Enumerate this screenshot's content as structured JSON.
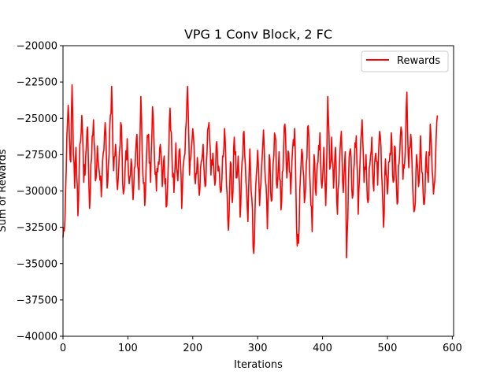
{
  "chart_data": {
    "type": "line",
    "title": "VPG 1 Conv Block, 2 FC",
    "xlabel": "Iterations",
    "ylabel": "Sum of Rewards",
    "xlim": [
      0,
      602
    ],
    "ylim": [
      -40000,
      -20000
    ],
    "x_ticks": [
      0,
      100,
      200,
      300,
      400,
      500,
      600
    ],
    "y_ticks": [
      -40000,
      -37500,
      -35000,
      -32500,
      -30000,
      -27500,
      -25000,
      -22500,
      -20000
    ],
    "grid": false,
    "legend_position": "top-right",
    "series": [
      {
        "name": "Rewards",
        "color": "#ff0000",
        "anchors": [
          [
            0,
            -33200
          ],
          [
            3,
            -32000
          ],
          [
            5,
            -28500
          ],
          [
            8,
            -24100
          ],
          [
            10,
            -26500
          ],
          [
            12,
            -28000
          ],
          [
            14,
            -22700
          ],
          [
            16,
            -27500
          ],
          [
            18,
            -29800
          ],
          [
            20,
            -27000
          ],
          [
            23,
            -31700
          ],
          [
            26,
            -26800
          ],
          [
            29,
            -24800
          ],
          [
            32,
            -29400
          ],
          [
            35,
            -27600
          ],
          [
            38,
            -25600
          ],
          [
            41,
            -31200
          ],
          [
            44,
            -27800
          ],
          [
            47,
            -25100
          ],
          [
            50,
            -29300
          ],
          [
            53,
            -26900
          ],
          [
            56,
            -28700
          ],
          [
            59,
            -30400
          ],
          [
            62,
            -27400
          ],
          [
            65,
            -25300
          ],
          [
            68,
            -29800
          ],
          [
            71,
            -27500
          ],
          [
            75,
            -22800
          ],
          [
            78,
            -28600
          ],
          [
            81,
            -26800
          ],
          [
            84,
            -29900
          ],
          [
            87,
            -27300
          ],
          [
            90,
            -25500
          ],
          [
            93,
            -30200
          ],
          [
            96,
            -28100
          ],
          [
            99,
            -26400
          ],
          [
            102,
            -29500
          ],
          [
            105,
            -27800
          ],
          [
            108,
            -30600
          ],
          [
            111,
            -28300
          ],
          [
            114,
            -26100
          ],
          [
            117,
            -29900
          ],
          [
            120,
            -23500
          ],
          [
            123,
            -28700
          ],
          [
            126,
            -31000
          ],
          [
            129,
            -27300
          ],
          [
            132,
            -26100
          ],
          [
            135,
            -29400
          ],
          [
            138,
            -24200
          ],
          [
            141,
            -27700
          ],
          [
            144,
            -30000
          ],
          [
            147,
            -28000
          ],
          [
            150,
            -26800
          ],
          [
            153,
            -29700
          ],
          [
            156,
            -27600
          ],
          [
            159,
            -31100
          ],
          [
            162,
            -28600
          ],
          [
            165,
            -24300
          ],
          [
            168,
            -27800
          ],
          [
            171,
            -30100
          ],
          [
            174,
            -26700
          ],
          [
            177,
            -29300
          ],
          [
            180,
            -27100
          ],
          [
            183,
            -31200
          ],
          [
            186,
            -28000
          ],
          [
            189,
            -25800
          ],
          [
            192,
            -22800
          ],
          [
            195,
            -28900
          ],
          [
            198,
            -27000
          ],
          [
            201,
            -26200
          ],
          [
            204,
            -29500
          ],
          [
            207,
            -27700
          ],
          [
            210,
            -30300
          ],
          [
            213,
            -28000
          ],
          [
            216,
            -26800
          ],
          [
            219,
            -29700
          ],
          [
            222,
            -27300
          ],
          [
            225,
            -25300
          ],
          [
            228,
            -28900
          ],
          [
            231,
            -27400
          ],
          [
            234,
            -29600
          ],
          [
            237,
            -26600
          ],
          [
            240,
            -28300
          ],
          [
            243,
            -30100
          ],
          [
            246,
            -27600
          ],
          [
            249,
            -25700
          ],
          [
            252,
            -29600
          ],
          [
            255,
            -32700
          ],
          [
            258,
            -28000
          ],
          [
            261,
            -30800
          ],
          [
            264,
            -26300
          ],
          [
            267,
            -29100
          ],
          [
            270,
            -27600
          ],
          [
            273,
            -31800
          ],
          [
            276,
            -28000
          ],
          [
            279,
            -25900
          ],
          [
            282,
            -29400
          ],
          [
            285,
            -32100
          ],
          [
            288,
            -27100
          ],
          [
            291,
            -30500
          ],
          [
            294,
            -34300
          ],
          [
            297,
            -29700
          ],
          [
            300,
            -27200
          ],
          [
            303,
            -31000
          ],
          [
            306,
            -28400
          ],
          [
            309,
            -25800
          ],
          [
            312,
            -29300
          ],
          [
            315,
            -32600
          ],
          [
            318,
            -27500
          ],
          [
            321,
            -30700
          ],
          [
            324,
            -28000
          ],
          [
            327,
            -26200
          ],
          [
            330,
            -29800
          ],
          [
            333,
            -27300
          ],
          [
            336,
            -31300
          ],
          [
            339,
            -28600
          ],
          [
            342,
            -25400
          ],
          [
            345,
            -29100
          ],
          [
            348,
            -27400
          ],
          [
            351,
            -30200
          ],
          [
            354,
            -27000
          ],
          [
            357,
            -25700
          ],
          [
            360,
            -32600
          ],
          [
            363,
            -33600
          ],
          [
            366,
            -29000
          ],
          [
            369,
            -27400
          ],
          [
            372,
            -30800
          ],
          [
            375,
            -28100
          ],
          [
            378,
            -25500
          ],
          [
            381,
            -29600
          ],
          [
            384,
            -32800
          ],
          [
            387,
            -27500
          ],
          [
            390,
            -30300
          ],
          [
            393,
            -28000
          ],
          [
            396,
            -26000
          ],
          [
            399,
            -29800
          ],
          [
            402,
            -27000
          ],
          [
            405,
            -31000
          ],
          [
            408,
            -23500
          ],
          [
            411,
            -28500
          ],
          [
            414,
            -26300
          ],
          [
            417,
            -29800
          ],
          [
            420,
            -27000
          ],
          [
            423,
            -31600
          ],
          [
            426,
            -28200
          ],
          [
            429,
            -25900
          ],
          [
            432,
            -30100
          ],
          [
            435,
            -27300
          ],
          [
            437,
            -34600
          ],
          [
            440,
            -29300
          ],
          [
            443,
            -27100
          ],
          [
            446,
            -30500
          ],
          [
            449,
            -28100
          ],
          [
            452,
            -26200
          ],
          [
            455,
            -31600
          ],
          [
            458,
            -27700
          ],
          [
            461,
            -25100
          ],
          [
            464,
            -29400
          ],
          [
            467,
            -27500
          ],
          [
            470,
            -30800
          ],
          [
            473,
            -28200
          ],
          [
            476,
            -26300
          ],
          [
            479,
            -30000
          ],
          [
            482,
            -27400
          ],
          [
            485,
            -29600
          ],
          [
            488,
            -25900
          ],
          [
            491,
            -28700
          ],
          [
            494,
            -32500
          ],
          [
            497,
            -27800
          ],
          [
            500,
            -30200
          ],
          [
            503,
            -28000
          ],
          [
            506,
            -26000
          ],
          [
            509,
            -29400
          ],
          [
            512,
            -27000
          ],
          [
            515,
            -30900
          ],
          [
            518,
            -28100
          ],
          [
            521,
            -25600
          ],
          [
            524,
            -29200
          ],
          [
            527,
            -27700
          ],
          [
            530,
            -23200
          ],
          [
            533,
            -28400
          ],
          [
            536,
            -26100
          ],
          [
            539,
            -29800
          ],
          [
            542,
            -31300
          ],
          [
            545,
            -27500
          ],
          [
            548,
            -29700
          ],
          [
            551,
            -26200
          ],
          [
            554,
            -28800
          ],
          [
            557,
            -30900
          ],
          [
            560,
            -27300
          ],
          [
            563,
            -29400
          ],
          [
            566,
            -25400
          ],
          [
            569,
            -28600
          ],
          [
            572,
            -29700
          ],
          [
            575,
            -26500
          ],
          [
            577,
            -24800
          ]
        ]
      }
    ]
  }
}
